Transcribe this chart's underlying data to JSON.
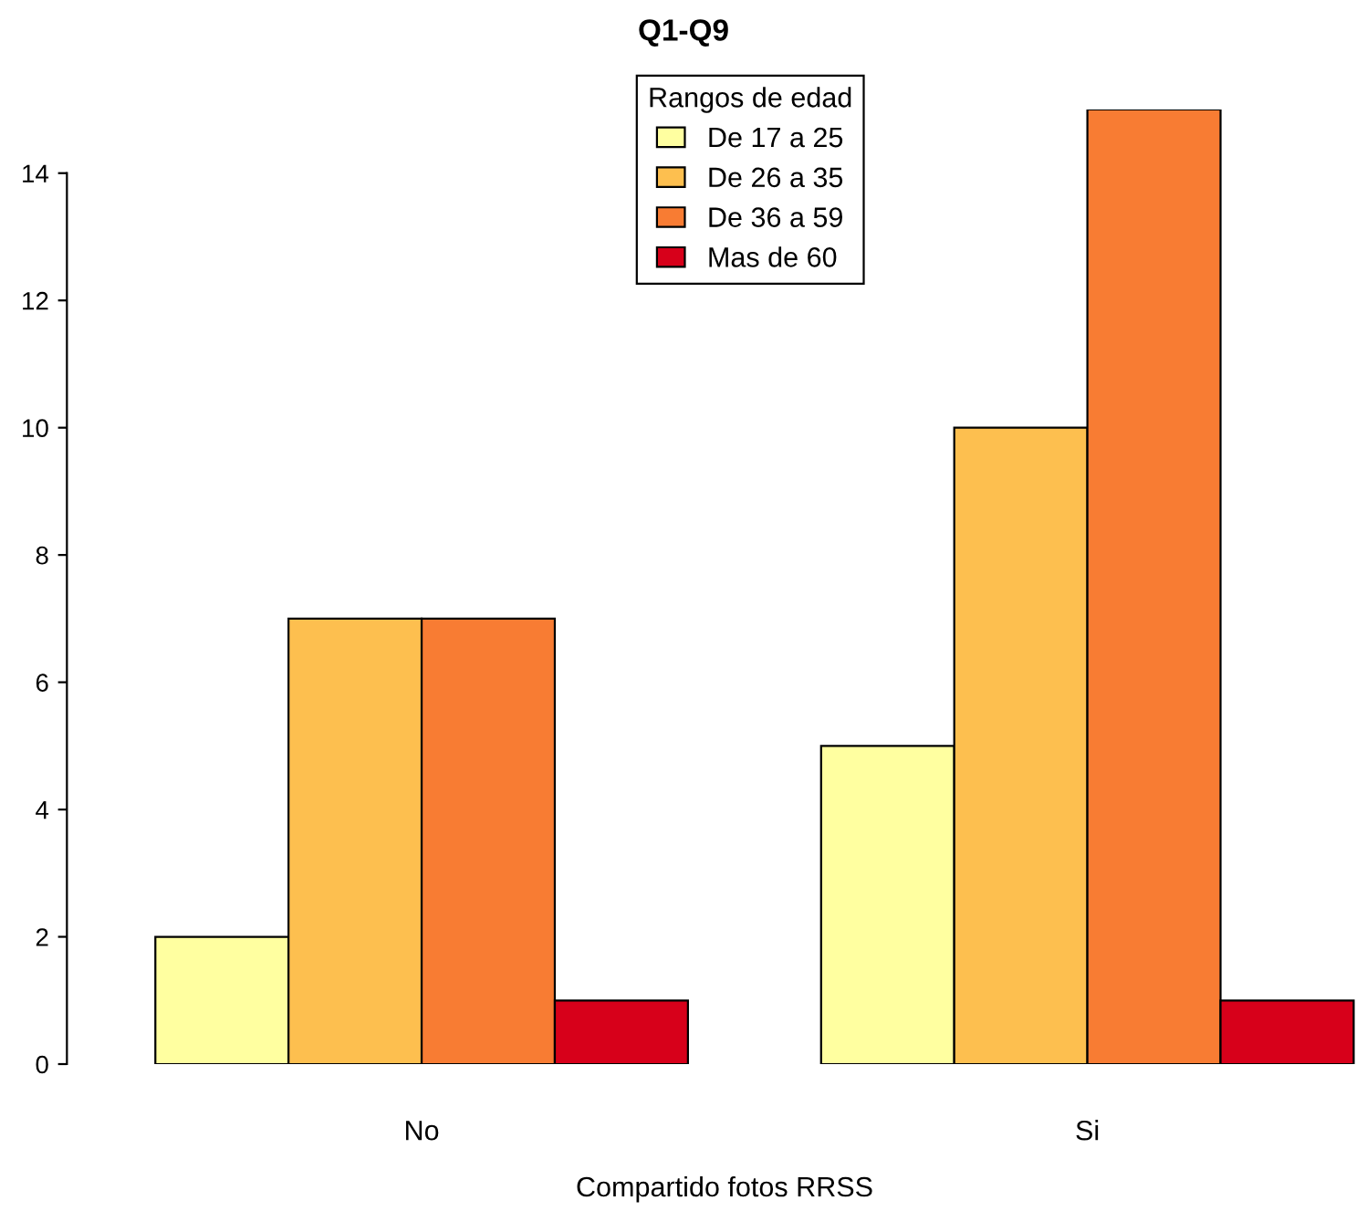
{
  "chart_data": {
    "type": "bar",
    "title": "Q1-Q9",
    "xlabel": "Compartido fotos RRSS",
    "legend_title": "Rangos de edad",
    "categories": [
      "No",
      "Si"
    ],
    "series": [
      {
        "name": "De 17 a 25",
        "color": "#ffffa0",
        "values": [
          2,
          5
        ]
      },
      {
        "name": "De 26 a 35",
        "color": "#fdbf4f",
        "values": [
          7,
          10
        ]
      },
      {
        "name": "De 36 a 59",
        "color": "#f87c33",
        "values": [
          7,
          15
        ]
      },
      {
        "name": "Mas de 60",
        "color": "#d7001a",
        "values": [
          1,
          1
        ]
      }
    ],
    "ylim": [
      0,
      15
    ],
    "yticks": [
      0,
      2,
      4,
      6,
      8,
      10,
      12,
      14
    ],
    "grid": false,
    "legend": "top"
  }
}
